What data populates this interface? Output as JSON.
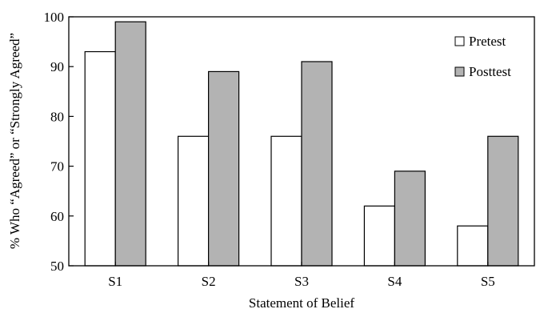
{
  "chart_data": {
    "type": "bar",
    "title": "",
    "xlabel": "Statement of Belief",
    "ylabel": "% Who “Agreed” or “Strongly Agreed”",
    "categories": [
      "S1",
      "S2",
      "S3",
      "S4",
      "S5"
    ],
    "series": [
      {
        "name": "Pretest",
        "values": [
          93,
          76,
          76,
          62,
          58
        ],
        "color": "#ffffff"
      },
      {
        "name": "Posttest",
        "values": [
          99,
          89,
          91,
          69,
          76
        ],
        "color": "#b3b3b3"
      }
    ],
    "ylim": [
      50,
      100
    ],
    "yticks": [
      50,
      60,
      70,
      80,
      90,
      100
    ],
    "grid": false,
    "legend_position": "top-right"
  }
}
